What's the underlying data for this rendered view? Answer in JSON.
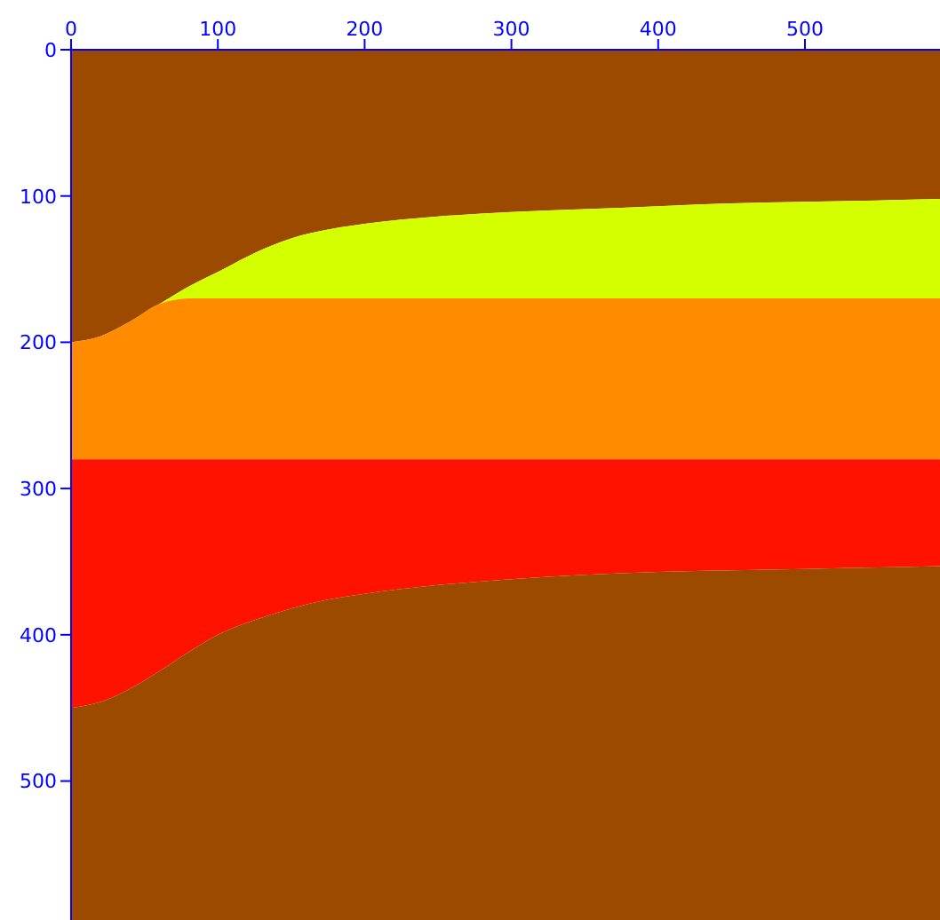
{
  "chart_data": {
    "type": "area",
    "stacked": true,
    "x": [
      0,
      20,
      40,
      60,
      80,
      100,
      125,
      150,
      175,
      200,
      250,
      300,
      350,
      400,
      450,
      500,
      550,
      592
    ],
    "series": [
      {
        "color": "#9b4a00",
        "values": [
          200,
          196,
          186,
          174,
          162,
          152,
          139,
          129,
          123,
          119,
          114,
          111,
          109,
          107,
          105,
          104,
          103,
          102
        ]
      },
      {
        "color": "#d4ff00",
        "values": [
          0,
          0,
          0,
          0,
          8,
          18,
          31,
          41,
          47,
          51,
          56,
          59,
          61,
          63,
          65,
          66,
          67,
          68
        ]
      },
      {
        "color": "#ff8c00",
        "values": [
          80,
          84,
          94,
          106,
          110,
          110,
          110,
          110,
          110,
          110,
          110,
          110,
          110,
          110,
          110,
          110,
          110,
          110
        ]
      },
      {
        "color": "#ff1200",
        "values": [
          170,
          166,
          157,
          145,
          132,
          120,
          110,
          102,
          96,
          92,
          86,
          82,
          79,
          77,
          76,
          75,
          74,
          73
        ]
      },
      {
        "color": "#9b4a00",
        "values": [
          145,
          149,
          158,
          170,
          183,
          195,
          205,
          213,
          219,
          223,
          229,
          233,
          236,
          238,
          239,
          240,
          241,
          242
        ]
      }
    ],
    "xlim": [
      0,
      592
    ],
    "xticks": [
      0,
      100,
      200,
      300,
      400,
      500
    ],
    "ylim": [
      595,
      0
    ],
    "yticks": [
      0,
      100,
      200,
      300,
      400,
      500
    ],
    "legend": false
  }
}
